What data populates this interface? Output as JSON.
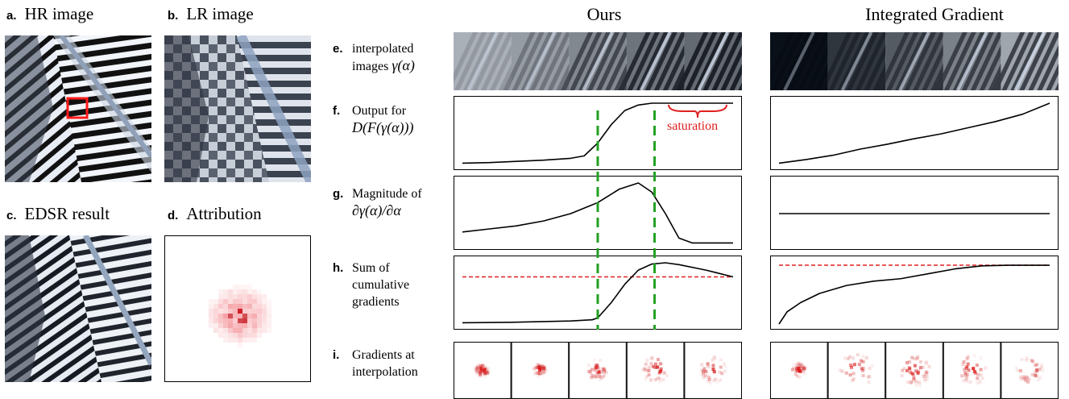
{
  "panels": {
    "a": {
      "letter": "a.",
      "title": "HR image"
    },
    "b": {
      "letter": "b.",
      "title": "LR image"
    },
    "c": {
      "letter": "c.",
      "title": "EDSR result"
    },
    "d": {
      "letter": "d.",
      "title": "Attribution"
    }
  },
  "columns": {
    "ours": "Ours",
    "ig": "Integrated Gradient"
  },
  "rows": {
    "e": {
      "letter": "e.",
      "line1": "interpolated",
      "line2_text": "images ",
      "line2_math": "γ(α)"
    },
    "f": {
      "letter": "f.",
      "line1": "Output for",
      "line2_math": "D(F(γ(α)))"
    },
    "g": {
      "letter": "g.",
      "line1": "Magnitude of",
      "line2_math": "∂γ(α)/∂α"
    },
    "h": {
      "letter": "h.",
      "line1": "Sum of",
      "line2": "cumulative",
      "line3": "gradients"
    },
    "i": {
      "letter": "i.",
      "line1": "Gradients at",
      "line2": "interpolation"
    }
  },
  "annotations": {
    "saturation": "saturation"
  },
  "colors": {
    "accent_red": "#e02020",
    "marker_green": "#22a022",
    "curve": "#000000"
  },
  "chart_data": [
    {
      "type": "line",
      "name": "ours-output",
      "x": [
        0,
        0.1,
        0.2,
        0.3,
        0.4,
        0.45,
        0.5,
        0.55,
        0.6,
        0.65,
        0.7,
        0.8,
        0.9,
        1.0
      ],
      "values": [
        0.02,
        0.03,
        0.05,
        0.07,
        0.1,
        0.14,
        0.35,
        0.65,
        0.88,
        0.97,
        1.0,
        1.0,
        1.0,
        1.0
      ],
      "markers": [
        0.5,
        0.71
      ]
    },
    {
      "type": "line",
      "name": "ig-output",
      "x": [
        0,
        0.05,
        0.1,
        0.2,
        0.3,
        0.4,
        0.5,
        0.6,
        0.7,
        0.8,
        0.9,
        1.0
      ],
      "values": [
        0.02,
        0.05,
        0.08,
        0.15,
        0.25,
        0.33,
        0.42,
        0.5,
        0.6,
        0.7,
        0.82,
        1.0
      ]
    },
    {
      "type": "line",
      "name": "ours-magnitude",
      "x": [
        0,
        0.1,
        0.2,
        0.3,
        0.4,
        0.5,
        0.58,
        0.65,
        0.7,
        0.75,
        0.8,
        0.85,
        0.9,
        1.0
      ],
      "values": [
        0.2,
        0.25,
        0.3,
        0.38,
        0.5,
        0.68,
        0.9,
        1.0,
        0.85,
        0.5,
        0.1,
        0.02,
        0.02,
        0.02
      ],
      "markers": [
        0.5,
        0.71
      ]
    },
    {
      "type": "line",
      "name": "ig-magnitude",
      "x": [
        0,
        1
      ],
      "values": [
        0.5,
        0.5
      ]
    },
    {
      "type": "line",
      "name": "ours-cumulative",
      "x": [
        0,
        0.2,
        0.4,
        0.48,
        0.5,
        0.55,
        0.6,
        0.65,
        0.7,
        0.75,
        0.8,
        0.9,
        1.0
      ],
      "values": [
        0.02,
        0.03,
        0.05,
        0.07,
        0.1,
        0.35,
        0.65,
        0.88,
        0.98,
        1.0,
        0.97,
        0.88,
        0.77
      ],
      "reference": 0.77,
      "markers": [
        0.5,
        0.71
      ]
    },
    {
      "type": "line",
      "name": "ig-cumulative",
      "x": [
        0,
        0.03,
        0.08,
        0.15,
        0.25,
        0.35,
        0.45,
        0.55,
        0.65,
        0.75,
        0.85,
        1.0
      ],
      "values": [
        0.0,
        0.2,
        0.35,
        0.5,
        0.63,
        0.7,
        0.74,
        0.82,
        0.9,
        0.95,
        0.96,
        0.96
      ],
      "reference": 0.96
    }
  ]
}
